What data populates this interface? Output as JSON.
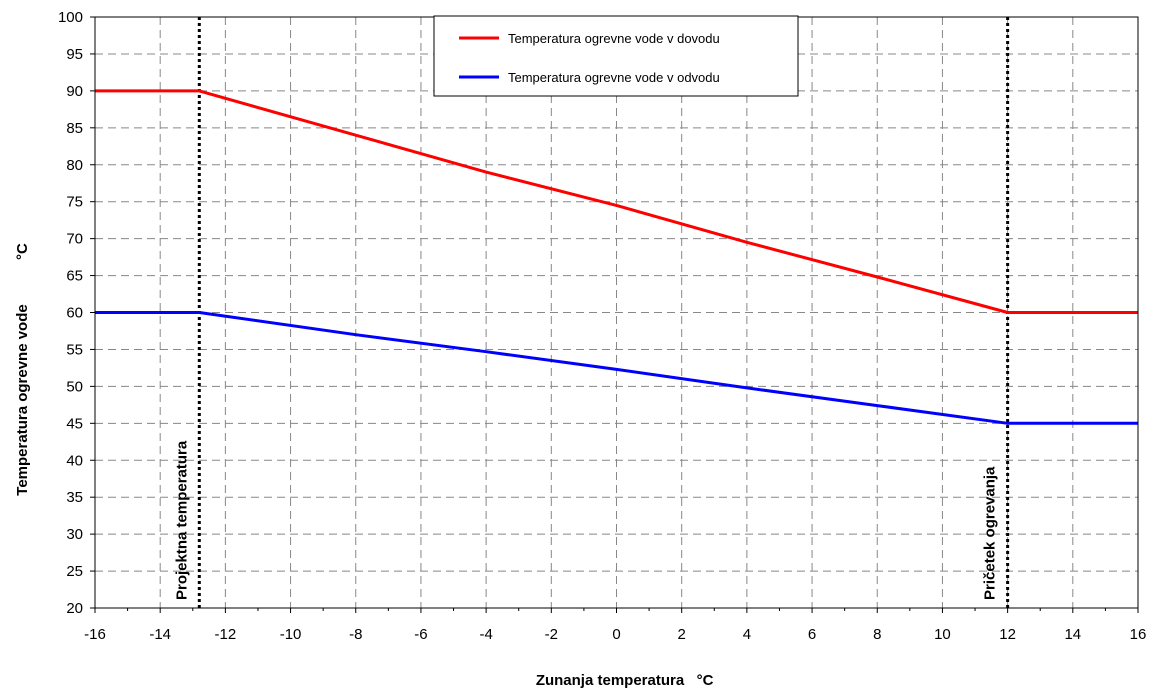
{
  "chart_data": {
    "type": "line",
    "title": "",
    "xlabel": "Zunanja temperatura",
    "xlabel_unit": "°C",
    "ylabel": "Temperatura ogrevne vode",
    "ylabel_unit": "°C",
    "xlim": [
      -16,
      16
    ],
    "ylim": [
      20,
      100
    ],
    "x_ticks": [
      -16,
      -14,
      -12,
      -10,
      -8,
      -6,
      -4,
      -2,
      0,
      2,
      4,
      6,
      8,
      10,
      12,
      14,
      16
    ],
    "y_ticks": [
      20,
      25,
      30,
      35,
      40,
      45,
      50,
      55,
      60,
      65,
      70,
      75,
      80,
      85,
      90,
      95,
      100
    ],
    "grid": true,
    "legend_position": "top-center",
    "series": [
      {
        "name": "Temperatura ogrevne vode v dovodu",
        "color": "#ff0000",
        "points": [
          [
            -16,
            90
          ],
          [
            -12.8,
            90
          ],
          [
            -8,
            84
          ],
          [
            -4,
            79
          ],
          [
            0,
            74.5
          ],
          [
            4,
            69.5
          ],
          [
            8,
            64.8
          ],
          [
            12,
            60
          ],
          [
            16,
            60
          ]
        ]
      },
      {
        "name": "Temperatura ogrevne vode v odvodu",
        "color": "#0000ff",
        "points": [
          [
            -16,
            60
          ],
          [
            -12.8,
            60
          ],
          [
            -8,
            57
          ],
          [
            -4,
            54.7
          ],
          [
            0,
            52.3
          ],
          [
            4,
            49.8
          ],
          [
            8,
            47.4
          ],
          [
            12,
            45
          ],
          [
            16,
            45
          ]
        ]
      }
    ],
    "annotations": [
      {
        "x": -12.8,
        "label": "Projektna temperatura"
      },
      {
        "x": 12,
        "label": "Pričetek ogrevanja"
      }
    ]
  }
}
